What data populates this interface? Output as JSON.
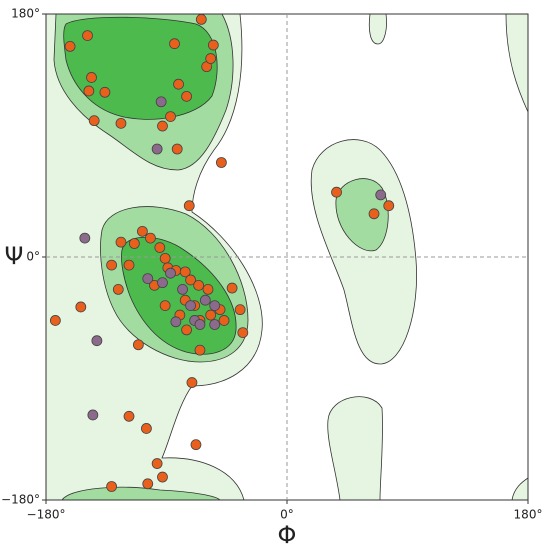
{
  "chart_data": {
    "type": "scatter",
    "xlabel": "Φ",
    "ylabel": "Ψ",
    "xlim": [
      -180,
      180
    ],
    "ylim": [
      -180,
      180
    ],
    "xticks": [
      {
        "value": -180,
        "label": "−180°"
      },
      {
        "value": 0,
        "label": "0°"
      },
      {
        "value": 180,
        "label": "180°"
      }
    ],
    "yticks": [
      {
        "value": -180,
        "label": "−180°"
      },
      {
        "value": 0,
        "label": "0°"
      },
      {
        "value": 180,
        "label": "180°"
      }
    ],
    "series": [
      {
        "color": "#e8601c",
        "x": [
          -149,
          -162,
          -64,
          -84,
          -55,
          -146,
          -136,
          -148,
          -60,
          -57,
          -81,
          -75,
          -144,
          -124,
          -93,
          -87,
          -49,
          -73,
          -82,
          -124,
          -108,
          -102,
          -114,
          -95,
          -91,
          -131,
          -89,
          -83,
          -76,
          -118,
          -126,
          -99,
          -72,
          -66,
          -59,
          -41,
          -35,
          -33,
          -47,
          -50,
          -57,
          -65,
          -69,
          -76,
          -80,
          -75,
          -65,
          -91,
          -111,
          -154,
          -173,
          -71,
          -118,
          -105,
          -68,
          -97,
          -93,
          -104,
          -131,
          37,
          65,
          76
        ],
        "y": [
          164,
          156,
          176,
          158,
          157,
          133,
          122,
          123,
          141,
          147,
          128,
          119,
          101,
          99,
          97,
          104,
          70,
          38,
          80,
          11,
          19,
          14,
          10,
          7,
          -1,
          -6,
          -8,
          -10,
          -11,
          -6,
          -24,
          -21,
          -17,
          -21,
          -24,
          -23,
          -39,
          -56,
          -47,
          -39,
          -43,
          -47,
          -36,
          -32,
          -43,
          -54,
          -69,
          -36,
          -65,
          -37,
          -47,
          -93,
          -118,
          -127,
          -139,
          -153,
          -163,
          -168,
          -170,
          48,
          32,
          38
        ]
      },
      {
        "color": "#8b6a8c",
        "x": [
          -94,
          -97,
          -151,
          -104,
          -93,
          -87,
          -78,
          -72,
          -61,
          -54,
          -83,
          -69,
          -65,
          -54,
          -142,
          -145,
          70
        ],
        "y": [
          115,
          80,
          14,
          -16,
          -19,
          -12,
          -24,
          -36,
          -32,
          -50,
          -48,
          -47,
          -50,
          -36,
          -62,
          -117,
          46
        ]
      }
    ]
  }
}
